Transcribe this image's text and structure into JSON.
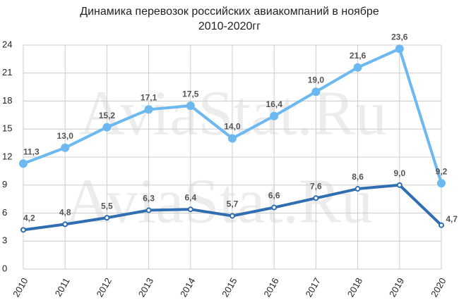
{
  "chart_data": {
    "type": "line",
    "title": "Динамика перевозок российских авиакомпаний в ноябре",
    "subtitle": "2010-2020гг",
    "watermarks": [
      "AviaStat.Ru",
      "AviaStat.Ru"
    ],
    "categories": [
      "2010",
      "2011",
      "2012",
      "2013",
      "2014",
      "2015",
      "2016",
      "2017",
      "2018",
      "2019",
      "2020"
    ],
    "series": [
      {
        "color": "#6cb8f0",
        "values": [
          11.3,
          13.0,
          15.2,
          17.1,
          17.5,
          14.0,
          16.4,
          19.0,
          21.6,
          23.6,
          9.2
        ],
        "value_labels": [
          "11,3",
          "13,0",
          "15,2",
          "17,1",
          "17,5",
          "14,0",
          "16,4",
          "19,0",
          "21,6",
          "23,6",
          "9,2"
        ]
      },
      {
        "color": "#2f6eb0",
        "values": [
          4.2,
          4.8,
          5.5,
          6.3,
          6.4,
          5.7,
          6.6,
          7.6,
          8.6,
          9.0,
          4.7
        ],
        "value_labels": [
          "4,2",
          "4,8",
          "5,5",
          "6,3",
          "6,4",
          "5,7",
          "6,6",
          "7,6",
          "8,6",
          "9,0",
          "4,7"
        ]
      }
    ],
    "ylim": [
      0,
      24
    ],
    "yticks": [
      0,
      3,
      6,
      9,
      12,
      15,
      18,
      21,
      24
    ],
    "grid": true
  }
}
